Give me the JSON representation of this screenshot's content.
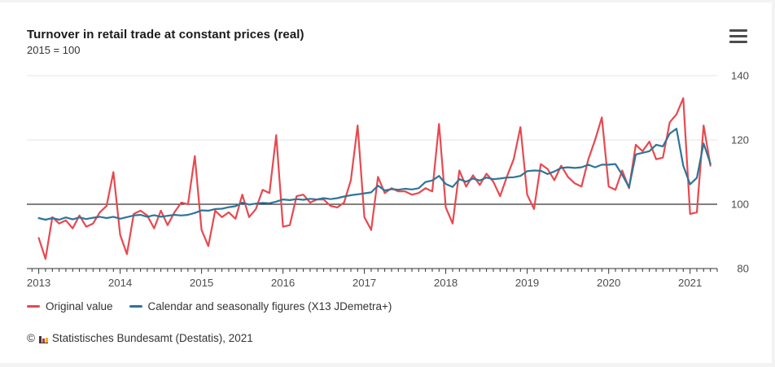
{
  "header": {
    "title": "Turnover in retail trade at constant prices (real)",
    "subtitle": "2015 = 100"
  },
  "menu": {
    "icon": "hamburger-menu",
    "tooltip": "Chart context menu"
  },
  "legend": {
    "items": [
      {
        "label": "Original value",
        "color": "#e7494f"
      },
      {
        "label": "Calendar and seasonally figures (X13 JDemetra+)",
        "color": "#2e7597"
      }
    ]
  },
  "footer": {
    "copyright": "©",
    "source": "Statistisches Bundesamt (Destatis), 2021"
  },
  "chart_data": {
    "type": "line",
    "title": "Turnover in retail trade at constant prices (real)",
    "subtitle": "2015 = 100",
    "frequency": "monthly",
    "x_start": "2013-01",
    "x_end": "2021-04",
    "x_tick_labels": [
      "2013",
      "2014",
      "2015",
      "2016",
      "2017",
      "2018",
      "2019",
      "2020",
      "2021"
    ],
    "ylim": [
      80,
      140
    ],
    "y_ticks": [
      80,
      100,
      120,
      140
    ],
    "reference_line": 100,
    "grid": "horizontal-light",
    "legend_position": "bottom-left",
    "axis_color": "#333333",
    "grid_color": "#e6e6e6",
    "label_color": "#4d4d4d",
    "series": [
      {
        "name": "Original value",
        "color": "#e7494f",
        "values": [
          89.5,
          83,
          96,
          94,
          95,
          92.5,
          96.5,
          93,
          94,
          97.5,
          99.5,
          110,
          90.5,
          84.5,
          97,
          98,
          96.5,
          92.5,
          98,
          93.5,
          97.5,
          100.5,
          100,
          115,
          92,
          87,
          98,
          96,
          97.5,
          95.5,
          103,
          96,
          98.5,
          104.5,
          103.5,
          121.5,
          93,
          93.5,
          102.5,
          103,
          100.5,
          101.5,
          101.5,
          99.5,
          99,
          100.5,
          107.5,
          124.5,
          96,
          92,
          108.5,
          103.5,
          105,
          104,
          104,
          103,
          103.5,
          105,
          104,
          125,
          99,
          94,
          110.5,
          105.5,
          109,
          106,
          109.5,
          107,
          102.5,
          108.5,
          114,
          124,
          103,
          98.5,
          112.5,
          111,
          107.5,
          112,
          108.5,
          106.5,
          105.5,
          114,
          120,
          127,
          105.5,
          104.5,
          110.5,
          105,
          118.5,
          116.5,
          119.5,
          114,
          114.5,
          125.5,
          128,
          133,
          97,
          97.5,
          124.5,
          112
        ]
      },
      {
        "name": "Calendar and seasonally figures (X13 JDemetra+)",
        "color": "#2e7597",
        "values": [
          95.7,
          95.2,
          95.7,
          95.2,
          95.9,
          95.3,
          95.9,
          95.4,
          95.8,
          96.1,
          95.7,
          96.1,
          95.5,
          96,
          96.5,
          96.7,
          96.1,
          96.6,
          96.1,
          96.4,
          96.7,
          96.5,
          96.7,
          97.3,
          98.1,
          98,
          98.5,
          98.6,
          99.1,
          99.4,
          100.5,
          99.9,
          100.2,
          100.4,
          100.3,
          100.8,
          101.5,
          101.3,
          101.6,
          101.4,
          101.7,
          101.5,
          101.9,
          101.6,
          101.9,
          102.4,
          102.8,
          103.1,
          103.4,
          103.7,
          105.8,
          104.3,
          104.7,
          104.5,
          104.8,
          104.6,
          105,
          106.9,
          107.4,
          108.8,
          106.3,
          105.4,
          107.8,
          107,
          108,
          107.4,
          108.3,
          107.8,
          108,
          108.3,
          108.4,
          108.8,
          110.3,
          110.5,
          110.4,
          109.4,
          110.2,
          111.3,
          111.5,
          111.3,
          111.5,
          112.3,
          111.5,
          112.3,
          112.3,
          112.5,
          109.2,
          105.3,
          115.5,
          116,
          116.5,
          118.5,
          118,
          122,
          123.5,
          112,
          106.2,
          108.2,
          118.9,
          112.6
        ]
      }
    ]
  }
}
